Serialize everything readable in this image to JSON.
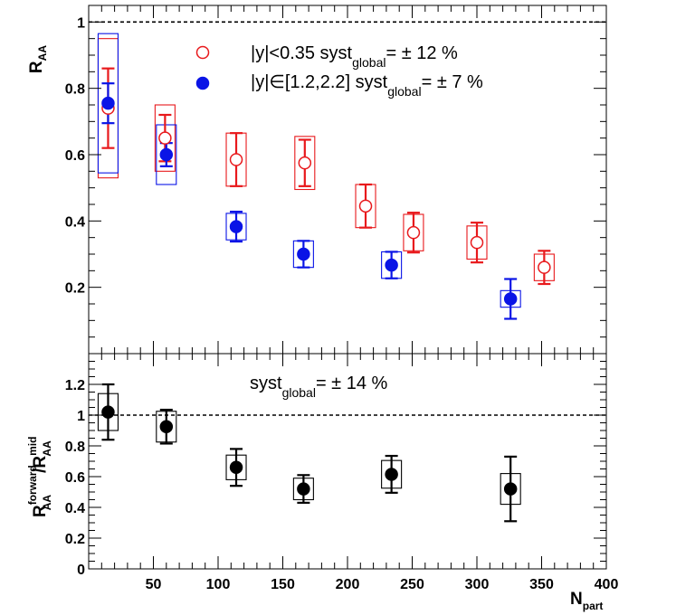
{
  "chart_data": [
    {
      "type": "scatter",
      "panel": "top",
      "ylabel": "R",
      "ylabel_sub": "AA",
      "xlim": [
        0,
        400
      ],
      "ylim": [
        0,
        1.05
      ],
      "yticks": [
        0.2,
        0.4,
        0.6,
        0.8,
        1
      ],
      "ytick_labels": [
        "0.2",
        "0.4",
        "0.6",
        "0.8",
        "1"
      ],
      "reference_line": 1,
      "legend": {
        "position": "top-center",
        "entries": [
          {
            "series": "mid",
            "prefix": "|y|<0.35   syst",
            "sub": "global",
            "suffix": "= ± 12 %"
          },
          {
            "series": "forward",
            "prefix": "|y|∈[1.2,2.2]   syst",
            "sub": "global",
            "suffix": "= ± 7 %"
          }
        ]
      },
      "series": [
        {
          "name": "|y|<0.35",
          "color": "#e8191c",
          "marker": "open-circle",
          "x": [
            15,
            59,
            114,
            167,
            214,
            251,
            300,
            352
          ],
          "y": [
            0.74,
            0.65,
            0.585,
            0.575,
            0.445,
            0.365,
            0.335,
            0.26
          ],
          "stat_err": [
            0.12,
            0.07,
            0.08,
            0.07,
            0.065,
            0.06,
            0.06,
            0.05
          ],
          "syst_err": [
            0.21,
            0.1,
            0.08,
            0.08,
            0.065,
            0.055,
            0.05,
            0.04
          ]
        },
        {
          "name": "|y|∈[1.2,2.2]",
          "color": "#0a14e6",
          "marker": "filled-circle",
          "x": [
            15,
            60,
            114,
            166,
            234,
            326
          ],
          "y": [
            0.755,
            0.6,
            0.383,
            0.3,
            0.267,
            0.165
          ],
          "stat_err": [
            0.06,
            0.035,
            0.045,
            0.04,
            0.04,
            0.06
          ],
          "syst_err": [
            0.21,
            0.09,
            0.04,
            0.04,
            0.04,
            0.025
          ]
        }
      ]
    },
    {
      "type": "scatter",
      "panel": "bottom",
      "ylabel": "R",
      "ylabel_sup1": "forward",
      "ylabel_sub1": "AA",
      "ylabel_mid": "/R",
      "ylabel_sup2": "mid",
      "ylabel_sub2": "AA",
      "xlabel": "N",
      "xlabel_sub": "part",
      "xlim": [
        0,
        400
      ],
      "ylim": [
        0,
        1.4
      ],
      "yticks": [
        0,
        0.2,
        0.4,
        0.6,
        0.8,
        1,
        1.2
      ],
      "ytick_labels": [
        "0",
        "0.2",
        "0.4",
        "0.6",
        "0.8",
        "1",
        "1.2"
      ],
      "xticks": [
        50,
        100,
        150,
        200,
        250,
        300,
        350,
        400
      ],
      "xtick_labels": [
        "50",
        "100",
        "150",
        "200",
        "250",
        "300",
        "350",
        "400"
      ],
      "reference_line": 1,
      "annotation": {
        "prefix": "syst",
        "sub": "global",
        "suffix": "= ± 14 %"
      },
      "series": [
        {
          "name": "forward/mid",
          "color": "#000000",
          "marker": "filled-circle",
          "x": [
            15,
            60,
            114,
            166,
            234,
            326
          ],
          "y": [
            1.02,
            0.925,
            0.66,
            0.52,
            0.615,
            0.52
          ],
          "stat_err": [
            0.18,
            0.11,
            0.12,
            0.09,
            0.12,
            0.21
          ],
          "syst_err": [
            0.12,
            0.1,
            0.08,
            0.07,
            0.09,
            0.1
          ]
        }
      ]
    }
  ]
}
